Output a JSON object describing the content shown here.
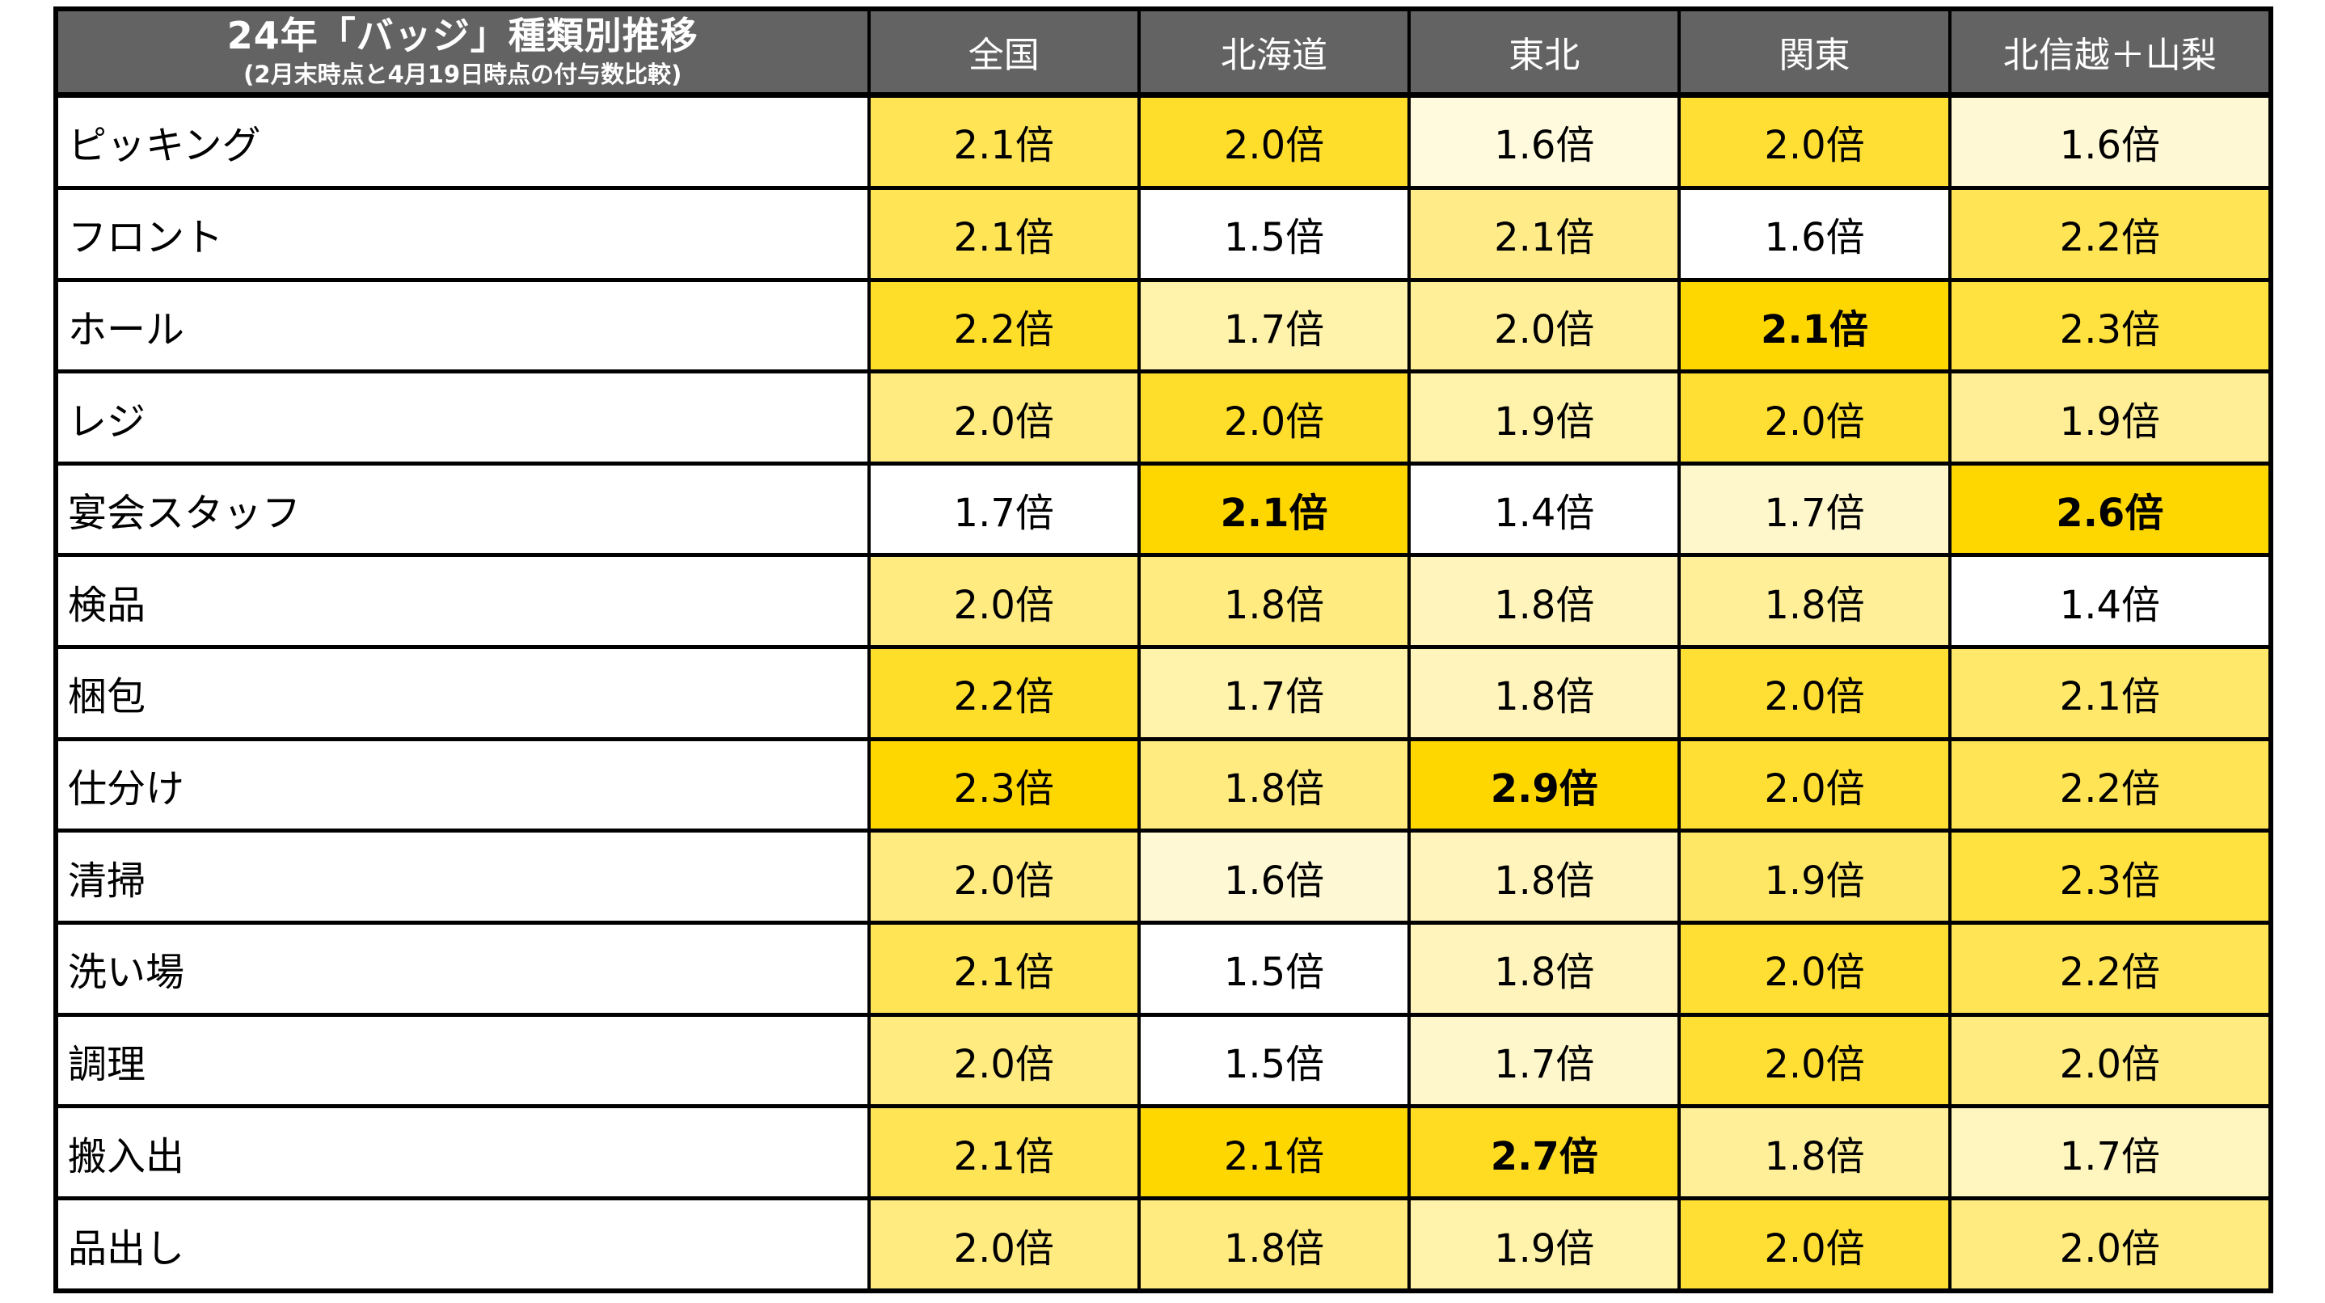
{
  "chart_data": {
    "type": "table",
    "title": "24年「バッジ」種類別推移",
    "subtitle": "(2月末時点と4月19日時点の付与数比較)",
    "value_suffix": "倍",
    "columns": [
      "全国",
      "北海道",
      "東北",
      "関東",
      "北信越＋山梨"
    ],
    "rows": [
      {
        "label": "ピッキング",
        "values": [
          2.1,
          2.0,
          1.6,
          2.0,
          1.6
        ]
      },
      {
        "label": "フロント",
        "values": [
          2.1,
          1.5,
          2.1,
          1.6,
          2.2
        ]
      },
      {
        "label": "ホール",
        "values": [
          2.2,
          1.7,
          2.0,
          2.1,
          2.3
        ]
      },
      {
        "label": "レジ",
        "values": [
          2.0,
          2.0,
          1.9,
          2.0,
          1.9
        ]
      },
      {
        "label": "宴会スタッフ",
        "values": [
          1.7,
          2.1,
          1.4,
          1.7,
          2.6
        ]
      },
      {
        "label": "検品",
        "values": [
          2.0,
          1.8,
          1.8,
          1.8,
          1.4
        ]
      },
      {
        "label": "梱包",
        "values": [
          2.2,
          1.7,
          1.8,
          2.0,
          2.1
        ]
      },
      {
        "label": "仕分け",
        "values": [
          2.3,
          1.8,
          2.9,
          2.0,
          2.2
        ]
      },
      {
        "label": "清掃",
        "values": [
          2.0,
          1.6,
          1.8,
          1.9,
          2.3
        ]
      },
      {
        "label": "洗い場",
        "values": [
          2.1,
          1.5,
          1.8,
          2.0,
          2.2
        ]
      },
      {
        "label": "調理",
        "values": [
          2.0,
          1.5,
          1.7,
          2.0,
          2.0
        ]
      },
      {
        "label": "搬入出",
        "values": [
          2.1,
          2.1,
          2.7,
          1.8,
          1.7
        ]
      },
      {
        "label": "品出し",
        "values": [
          2.0,
          1.8,
          1.9,
          2.0,
          2.0
        ]
      }
    ],
    "bold_cells": [
      {
        "row": "ホール",
        "column": "関東"
      },
      {
        "row": "宴会スタッフ",
        "column": "北海道"
      },
      {
        "row": "宴会スタッフ",
        "column": "北信越＋山梨"
      },
      {
        "row": "仕分け",
        "column": "東北"
      },
      {
        "row": "搬入出",
        "column": "東北"
      }
    ],
    "color_scale": {
      "mode": "per-column-min-to-max",
      "min_color": "#FFFFFF",
      "max_color": "#FFD700"
    },
    "styles": {
      "header_bg": "#636363",
      "header_text": "#FFFFFF",
      "border_color": "#000000",
      "body_text": "#000000",
      "grid": "on",
      "legend": "none"
    }
  }
}
